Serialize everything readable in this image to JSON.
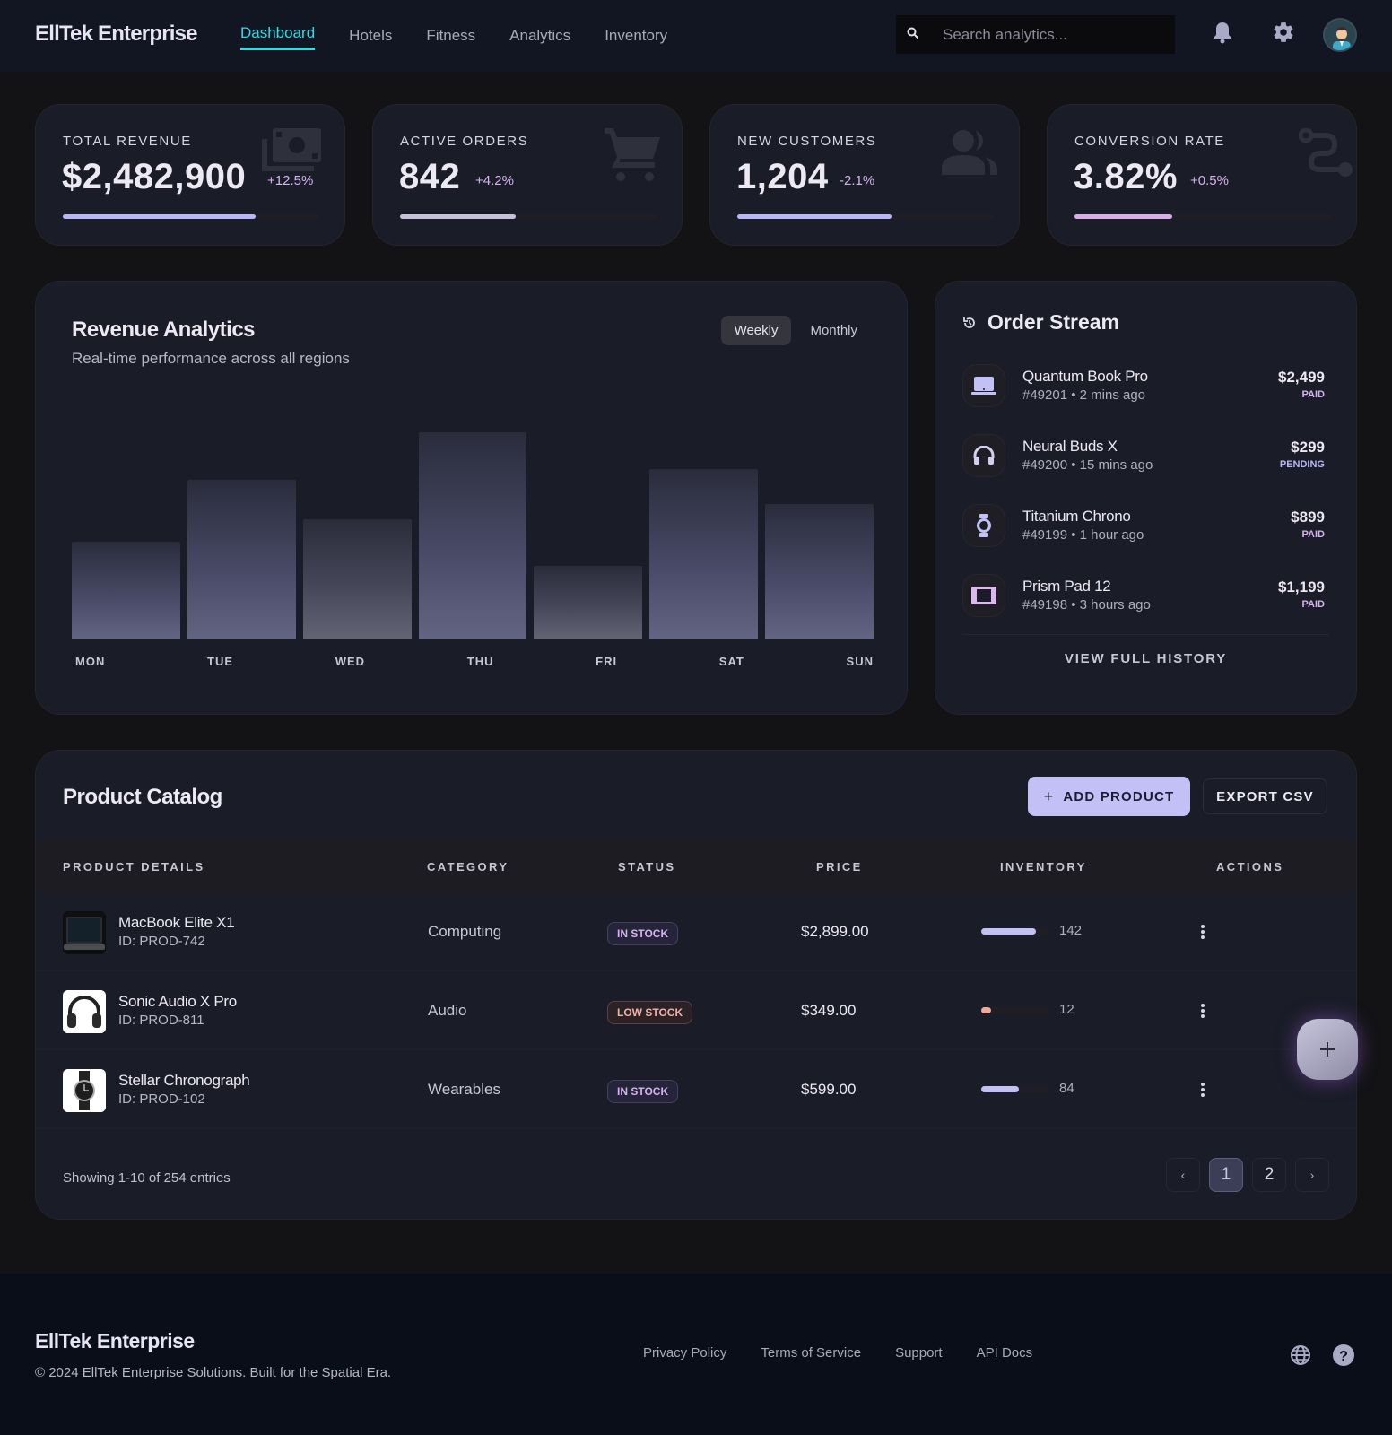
{
  "header": {
    "brand": "EllTek Enterprise",
    "nav": [
      {
        "label": "Dashboard",
        "active": true
      },
      {
        "label": "Hotels",
        "active": false
      },
      {
        "label": "Fitness",
        "active": false
      },
      {
        "label": "Analytics",
        "active": false
      },
      {
        "label": "Inventory",
        "active": false
      }
    ],
    "search": {
      "placeholder": "Search analytics...",
      "value": ""
    },
    "icons": [
      "bell-icon",
      "gear-icon",
      "user-avatar"
    ]
  },
  "kpis": [
    {
      "label": "TOTAL REVENUE",
      "value": "$2,482,900",
      "delta": "+12.5%",
      "trend": "up",
      "progress": 75,
      "bar_color": "#b9b6f5",
      "icon": "money-icon"
    },
    {
      "label": "ACTIVE ORDERS",
      "value": "842",
      "delta": "+4.2%",
      "trend": "up",
      "progress": 45,
      "bar_color": "#c4c1d8",
      "icon": "cart-icon"
    },
    {
      "label": "NEW CUSTOMERS",
      "value": "1,204",
      "delta": "-2.1%",
      "trend": "down",
      "progress": 60,
      "bar_color": "#b9b6f5",
      "icon": "users-icon"
    },
    {
      "label": "CONVERSION RATE",
      "value": "3.82%",
      "delta": "+0.5%",
      "trend": "up",
      "progress": 38,
      "bar_color": "#d7aee6",
      "icon": "route-icon"
    }
  ],
  "revenue": {
    "title": "Revenue Analytics",
    "subtitle": "Real-time performance across all regions",
    "toggle": [
      {
        "label": "Weekly",
        "active": true
      },
      {
        "label": "Monthly",
        "active": false
      }
    ]
  },
  "chart_data": {
    "type": "bar",
    "title": "Revenue Analytics",
    "subtitle": "Real-time performance across all regions",
    "categories": [
      "MON",
      "TUE",
      "WED",
      "THU",
      "FRI",
      "SAT",
      "SUN"
    ],
    "values": [
      47,
      77,
      58,
      100,
      35,
      82,
      65
    ],
    "xlabel": "",
    "ylabel": "",
    "ylim": [
      0,
      100
    ],
    "grid": false,
    "legend": "none",
    "note": "Relative bar heights (% of tallest); no axis values shown"
  },
  "order_stream": {
    "title": "Order Stream",
    "items": [
      {
        "name": "Quantum Book Pro",
        "meta": "#49201 • 2 mins ago",
        "amount": "$2,499",
        "status": "PAID",
        "icon": "laptop-icon"
      },
      {
        "name": "Neural Buds X",
        "meta": "#49200 • 15 mins ago",
        "amount": "$299",
        "status": "PENDING",
        "icon": "headphones-icon"
      },
      {
        "name": "Titanium Chrono",
        "meta": "#49199 • 1 hour ago",
        "amount": "$899",
        "status": "PAID",
        "icon": "watch-icon"
      },
      {
        "name": "Prism Pad 12",
        "meta": "#49198 • 3 hours ago",
        "amount": "$1,199",
        "status": "PAID",
        "icon": "tablet-icon"
      }
    ],
    "view_all": "VIEW FULL HISTORY"
  },
  "catalog": {
    "title": "Product Catalog",
    "add_label": "ADD PRODUCT",
    "export_label": "EXPORT CSV",
    "columns": [
      "PRODUCT DETAILS",
      "CATEGORY",
      "STATUS",
      "PRICE",
      "INVENTORY",
      "ACTIONS"
    ],
    "rows": [
      {
        "name": "MacBook Elite X1",
        "id": "ID: PROD-742",
        "category": "Computing",
        "status": "IN STOCK",
        "status_type": "ok",
        "price": "$2,899.00",
        "inventory": "142",
        "inv_pct": 80,
        "inv_color": "#c2c0f5",
        "thumb": "laptop"
      },
      {
        "name": "Sonic Audio X Pro",
        "id": "ID: PROD-811",
        "category": "Audio",
        "status": "LOW STOCK",
        "status_type": "low",
        "price": "$349.00",
        "inventory": "12",
        "inv_pct": 15,
        "inv_color": "#f3a89a",
        "thumb": "headphones"
      },
      {
        "name": "Stellar Chronograph",
        "id": "ID: PROD-102",
        "category": "Wearables",
        "status": "IN STOCK",
        "status_type": "ok",
        "price": "$599.00",
        "inventory": "84",
        "inv_pct": 55,
        "inv_color": "#c2c0f5",
        "thumb": "watch"
      }
    ],
    "showing": "Showing 1-10 of 254 entries",
    "pages": [
      "1",
      "2"
    ],
    "current_page": "1",
    "prev": "‹",
    "next": "›"
  },
  "fab": {
    "label": "+"
  },
  "footer": {
    "brand": "EllTek Enterprise",
    "copyright": "© 2024 EllTek Enterprise Solutions. Built for the Spatial Era.",
    "links": [
      "Privacy Policy",
      "Terms of Service",
      "Support",
      "API Docs"
    ],
    "icons": [
      "globe-icon",
      "help-icon"
    ]
  }
}
